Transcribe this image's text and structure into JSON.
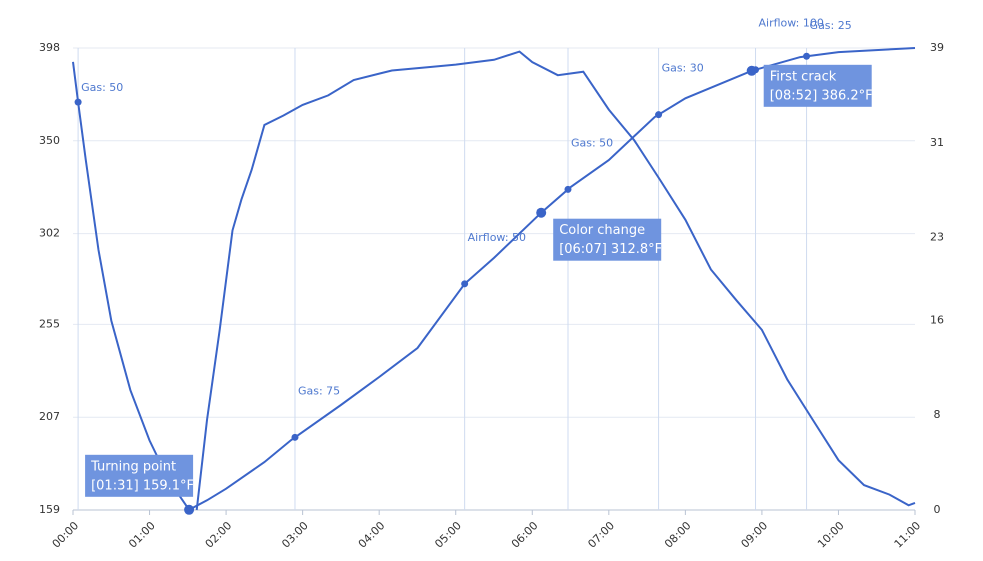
{
  "chart_data": {
    "type": "line",
    "xlim": [
      0,
      660
    ],
    "xticks": [
      {
        "value": 0,
        "label": "00:00"
      },
      {
        "value": 60,
        "label": "01:00"
      },
      {
        "value": 120,
        "label": "02:00"
      },
      {
        "value": 180,
        "label": "03:00"
      },
      {
        "value": 240,
        "label": "04:00"
      },
      {
        "value": 300,
        "label": "05:00"
      },
      {
        "value": 360,
        "label": "06:00"
      },
      {
        "value": 420,
        "label": "07:00"
      },
      {
        "value": 480,
        "label": "08:00"
      },
      {
        "value": 540,
        "label": "09:00"
      },
      {
        "value": 600,
        "label": "10:00"
      },
      {
        "value": 660,
        "label": "11:00"
      }
    ],
    "ylim": [
      159,
      398
    ],
    "yticks": [
      159,
      207,
      255,
      302,
      350,
      398
    ],
    "y2lim": [
      0,
      39
    ],
    "y2ticks": [
      0,
      8,
      16,
      23,
      31,
      39
    ],
    "grid": true,
    "series": [
      {
        "color": "#3a64c8",
        "x": [
          0,
          4,
          10,
          20,
          30,
          45,
          60,
          75,
          91,
          105,
          120,
          150,
          171,
          210,
          240,
          270,
          307,
          330,
          367,
          390,
          420,
          456,
          480,
          532,
          570,
          600,
          660
        ],
        "values": [
          390.8,
          370,
          340,
          293.5,
          257,
          221,
          195,
          174.5,
          159.1,
          164,
          170,
          183.8,
          195.2,
          213.3,
          227.8,
          242.8,
          276,
          289.4,
          312.8,
          326,
          340,
          362.3,
          372,
          386.2,
          393.3,
          395.9,
          398
        ]
      },
      {
        "color": "#3a64c8",
        "axis": "y2",
        "x": [
          97,
          105,
          115,
          125,
          132,
          140,
          150,
          165,
          180,
          200,
          220,
          250,
          280,
          300,
          330,
          350,
          360,
          380,
          400,
          420,
          440,
          460,
          480,
          500,
          520,
          540,
          560,
          580,
          600,
          620,
          640,
          655,
          660
        ],
        "values": [
          0,
          7.6,
          15.2,
          23.6,
          26.2,
          28.7,
          32.5,
          33.3,
          34.2,
          35,
          36.3,
          37.1,
          37.4,
          37.6,
          38,
          38.7,
          37.8,
          36.7,
          37,
          33.8,
          31.2,
          27.9,
          24.5,
          20.3,
          17.7,
          15.2,
          11,
          7.6,
          4.2,
          2.1,
          1.3,
          0.4,
          0.6
        ]
      }
    ],
    "events": [
      {
        "label": "Gas: 50",
        "x": 4
      },
      {
        "label": "Gas: 75",
        "x": 174
      },
      {
        "label": "Airflow: 50",
        "x": 307
      },
      {
        "label": "Gas: 50",
        "x": 388
      },
      {
        "label": "Gas: 30",
        "x": 459
      },
      {
        "label": "Airflow: 100",
        "x": 535
      },
      {
        "label": "Gas: 25",
        "x": 575
      }
    ],
    "callouts": [
      {
        "title": "Turning point",
        "label": "[01:31] 159.1°F",
        "x": 91,
        "value": 159.1
      },
      {
        "title": "Color change",
        "label": "[06:07] 312.8°F",
        "x": 367,
        "value": 312.8
      },
      {
        "title": "First crack",
        "label": "[08:52] 386.2°F",
        "x": 532,
        "value": 386.2
      }
    ]
  }
}
